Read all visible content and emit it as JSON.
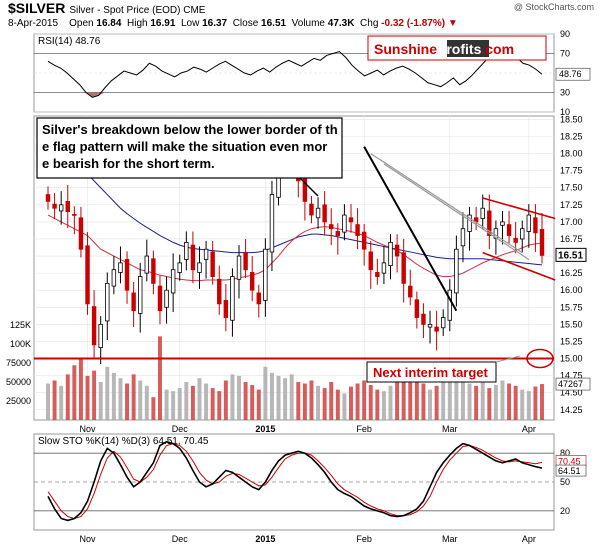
{
  "header": {
    "ticker": "$SILVER",
    "subtitle": "Silver - Spot Price (EOD)  CME",
    "copyright": "@ StockCharts.com",
    "date": "8-Apr-2015",
    "open_label": "Open",
    "open": "16.84",
    "high_label": "High",
    "high": "16.91",
    "low_label": "Low",
    "low": "16.37",
    "close_label": "Close",
    "close": "16.51",
    "volume_label": "Volume",
    "volume": "47.3K",
    "chg_label": "Chg",
    "chg": "-0.32 (-1.87%)"
  },
  "logo": {
    "part1": "Sunshine",
    "part2": "Profits",
    "part3": ".com"
  },
  "annotations": {
    "main_note": "Silver's breakdown below the lower border of the flag pattern will make the situation even more bearish for the short term.",
    "target_note": "Next interim target"
  },
  "colors": {
    "price_up": "#000000",
    "price_down": "#cc0000",
    "sma50": "#cc3344",
    "sma200": "#1a237e",
    "trend_red": "#cc0000",
    "trend_black": "#000000",
    "trend_gray": "#999999",
    "volume": "#aaaaaa",
    "volume_down": "#d04040",
    "rsi_fill_low": "#a05050",
    "sto_k": "#000000",
    "sto_d": "#cc0000"
  },
  "chart_data": [
    {
      "type": "line",
      "panel": "rsi",
      "title": "RSI(14) 48.76",
      "label": "RSI(14)",
      "last": "48.76",
      "ylim": [
        10,
        90
      ],
      "yticks": [
        "90",
        "70",
        "50",
        "30",
        "10"
      ],
      "series": [
        {
          "name": "RSI(14)",
          "values": [
            62,
            58,
            55,
            50,
            44,
            38,
            30,
            25,
            27,
            35,
            42,
            47,
            52,
            50,
            48,
            53,
            60,
            57,
            52,
            49,
            46,
            50,
            52,
            56,
            54,
            51,
            55,
            59,
            62,
            58,
            54,
            50,
            48,
            52,
            55,
            51,
            56,
            60,
            63,
            60,
            57,
            61,
            65,
            63,
            68,
            70,
            72,
            66,
            58,
            52,
            47,
            50,
            53,
            48,
            52,
            55,
            57,
            54,
            50,
            45,
            40,
            38,
            36,
            40,
            45,
            38,
            42,
            48,
            55,
            62,
            70,
            72,
            68,
            70,
            66,
            60,
            58,
            54,
            48.76
          ]
        }
      ]
    },
    {
      "type": "candlestick",
      "panel": "price",
      "x_labels": [
        "Nov",
        "Dec",
        "2015",
        "Feb",
        "Mar",
        "Apr"
      ],
      "yticks": [
        "18.50",
        "18.25",
        "18.00",
        "17.75",
        "17.50",
        "17.25",
        "17.00",
        "16.75",
        "16.50",
        "16.25",
        "16.00",
        "15.75",
        "15.50",
        "15.25",
        "15.00",
        "14.75",
        "14.50",
        "14.25"
      ],
      "ylim": [
        14.1,
        18.55
      ],
      "last_close": "16.51",
      "close": [
        17.3,
        17.2,
        17.25,
        17.15,
        17.1,
        16.6,
        15.8,
        15.2,
        15.5,
        16.1,
        16.3,
        16.4,
        16.0,
        15.7,
        16.2,
        16.5,
        16.1,
        15.7,
        16.0,
        16.3,
        16.4,
        16.7,
        16.3,
        16.4,
        16.6,
        16.2,
        15.8,
        15.6,
        16.2,
        16.5,
        16.3,
        16.0,
        15.8,
        16.6,
        17.4,
        17.9,
        18.1,
        18.2,
        17.6,
        17.3,
        17.1,
        17.2,
        17.0,
        16.9,
        16.8,
        17.1,
        17.0,
        16.8,
        16.6,
        16.3,
        16.2,
        16.4,
        16.7,
        16.5,
        16.1,
        15.9,
        15.6,
        15.5,
        15.5,
        15.4,
        15.6,
        16.0,
        16.6,
        16.9,
        17.1,
        17.0,
        17.2,
        16.8,
        16.9,
        17.0,
        16.8,
        16.7,
        16.9,
        17.1,
        16.84,
        16.51
      ],
      "volume_ylim": [
        0,
        125000
      ],
      "volume_ticks": [
        "125K",
        "100K",
        "75000",
        "50000",
        "25000"
      ],
      "volume_last": "47267",
      "volume": [
        48000,
        52000,
        45000,
        60000,
        72000,
        80000,
        58000,
        65000,
        50000,
        70000,
        62000,
        55000,
        48000,
        60000,
        52000,
        45000,
        30000,
        110000,
        40000,
        38000,
        42000,
        50000,
        45000,
        55000,
        48000,
        42000,
        38000,
        52000,
        60000,
        58000,
        50000,
        46000,
        40000,
        70000,
        62000,
        58000,
        55000,
        60000,
        50000,
        48000,
        52000,
        45000,
        42000,
        50000,
        40000,
        35000,
        44000,
        48000,
        52000,
        46000,
        40000,
        38000,
        45000,
        50000,
        55000,
        60000,
        52000,
        48000,
        40000,
        45000,
        50000,
        55000,
        52000,
        60000,
        48000,
        45000,
        50000,
        42000,
        46000,
        52000,
        48000,
        45000,
        40000,
        38000,
        44000,
        47267
      ],
      "sma50": [
        17.1,
        17.05,
        17.0,
        16.95,
        16.9,
        16.85,
        16.8,
        16.7,
        16.6,
        16.55,
        16.5,
        16.45,
        16.4,
        16.35,
        16.3,
        16.28,
        16.25,
        16.22,
        16.2,
        16.18,
        16.16,
        16.15,
        16.14,
        16.14,
        16.15,
        16.15,
        16.15,
        16.15,
        16.16,
        16.18,
        16.2,
        16.22,
        16.25,
        16.3,
        16.4,
        16.5,
        16.62,
        16.72,
        16.8,
        16.86,
        16.9,
        16.92,
        16.93,
        16.92,
        16.9,
        16.88,
        16.86,
        16.83,
        16.8,
        16.75,
        16.7,
        16.66,
        16.62,
        16.58,
        16.52,
        16.45,
        16.38,
        16.32,
        16.27,
        16.22,
        16.2,
        16.2,
        16.22,
        16.25,
        16.3,
        16.35,
        16.4,
        16.44,
        16.48,
        16.52,
        16.55,
        16.58,
        16.62,
        16.66,
        16.68,
        16.69
      ],
      "sma200": [
        18.3,
        18.2,
        18.1,
        18.0,
        17.9,
        17.8,
        17.7,
        17.6,
        17.5,
        17.4,
        17.3,
        17.2,
        17.12,
        17.05,
        16.98,
        16.92,
        16.86,
        16.8,
        16.75,
        16.7,
        16.66,
        16.63,
        16.61,
        16.6,
        16.59,
        16.58,
        16.57,
        16.56,
        16.55,
        16.55,
        16.55,
        16.55,
        16.56,
        16.58,
        16.62,
        16.66,
        16.7,
        16.74,
        16.78,
        16.8,
        16.82,
        16.82,
        16.81,
        16.8,
        16.78,
        16.76,
        16.74,
        16.72,
        16.7,
        16.68,
        16.66,
        16.64,
        16.62,
        16.6,
        16.58,
        16.56,
        16.54,
        16.52,
        16.5,
        16.48,
        16.47,
        16.46,
        16.46,
        16.46,
        16.46,
        16.46,
        16.46,
        16.45,
        16.44,
        16.43,
        16.42,
        16.41,
        16.4,
        16.39,
        16.38,
        16.37
      ]
    },
    {
      "type": "line",
      "panel": "stochastic",
      "title": "Slow STO %K(14) %D(3) 64.51, 70.45",
      "label": "Slow STO %K(14) %D(3)",
      "last_k": "64.51",
      "last_d": "70.45",
      "ylim": [
        0,
        100
      ],
      "yticks": [
        "80",
        "50",
        "20"
      ],
      "k_values": [
        35,
        22,
        12,
        10,
        12,
        18,
        30,
        50,
        72,
        85,
        80,
        68,
        55,
        45,
        50,
        60,
        70,
        88,
        92,
        90,
        85,
        75,
        62,
        50,
        45,
        48,
        55,
        62,
        60,
        55,
        50,
        45,
        42,
        50,
        62,
        72,
        78,
        80,
        82,
        80,
        75,
        68,
        60,
        50,
        42,
        38,
        35,
        30,
        25,
        22,
        20,
        18,
        15,
        14,
        15,
        18,
        22,
        30,
        45,
        60,
        70,
        78,
        85,
        90,
        88,
        84,
        80,
        76,
        72,
        70,
        72,
        74,
        70,
        68,
        66,
        64.51
      ],
      "d_values": [
        40,
        30,
        20,
        14,
        12,
        14,
        22,
        38,
        58,
        75,
        82,
        76,
        65,
        53,
        50,
        55,
        63,
        78,
        88,
        90,
        88,
        82,
        72,
        60,
        52,
        48,
        50,
        56,
        59,
        58,
        54,
        50,
        46,
        47,
        55,
        65,
        74,
        78,
        80,
        80,
        78,
        72,
        65,
        57,
        48,
        42,
        38,
        34,
        29,
        25,
        22,
        20,
        17,
        15,
        15,
        16,
        19,
        25,
        35,
        50,
        63,
        73,
        80,
        87,
        88,
        86,
        83,
        79,
        75,
        72,
        71,
        72,
        71,
        70,
        69,
        70.45
      ]
    }
  ]
}
